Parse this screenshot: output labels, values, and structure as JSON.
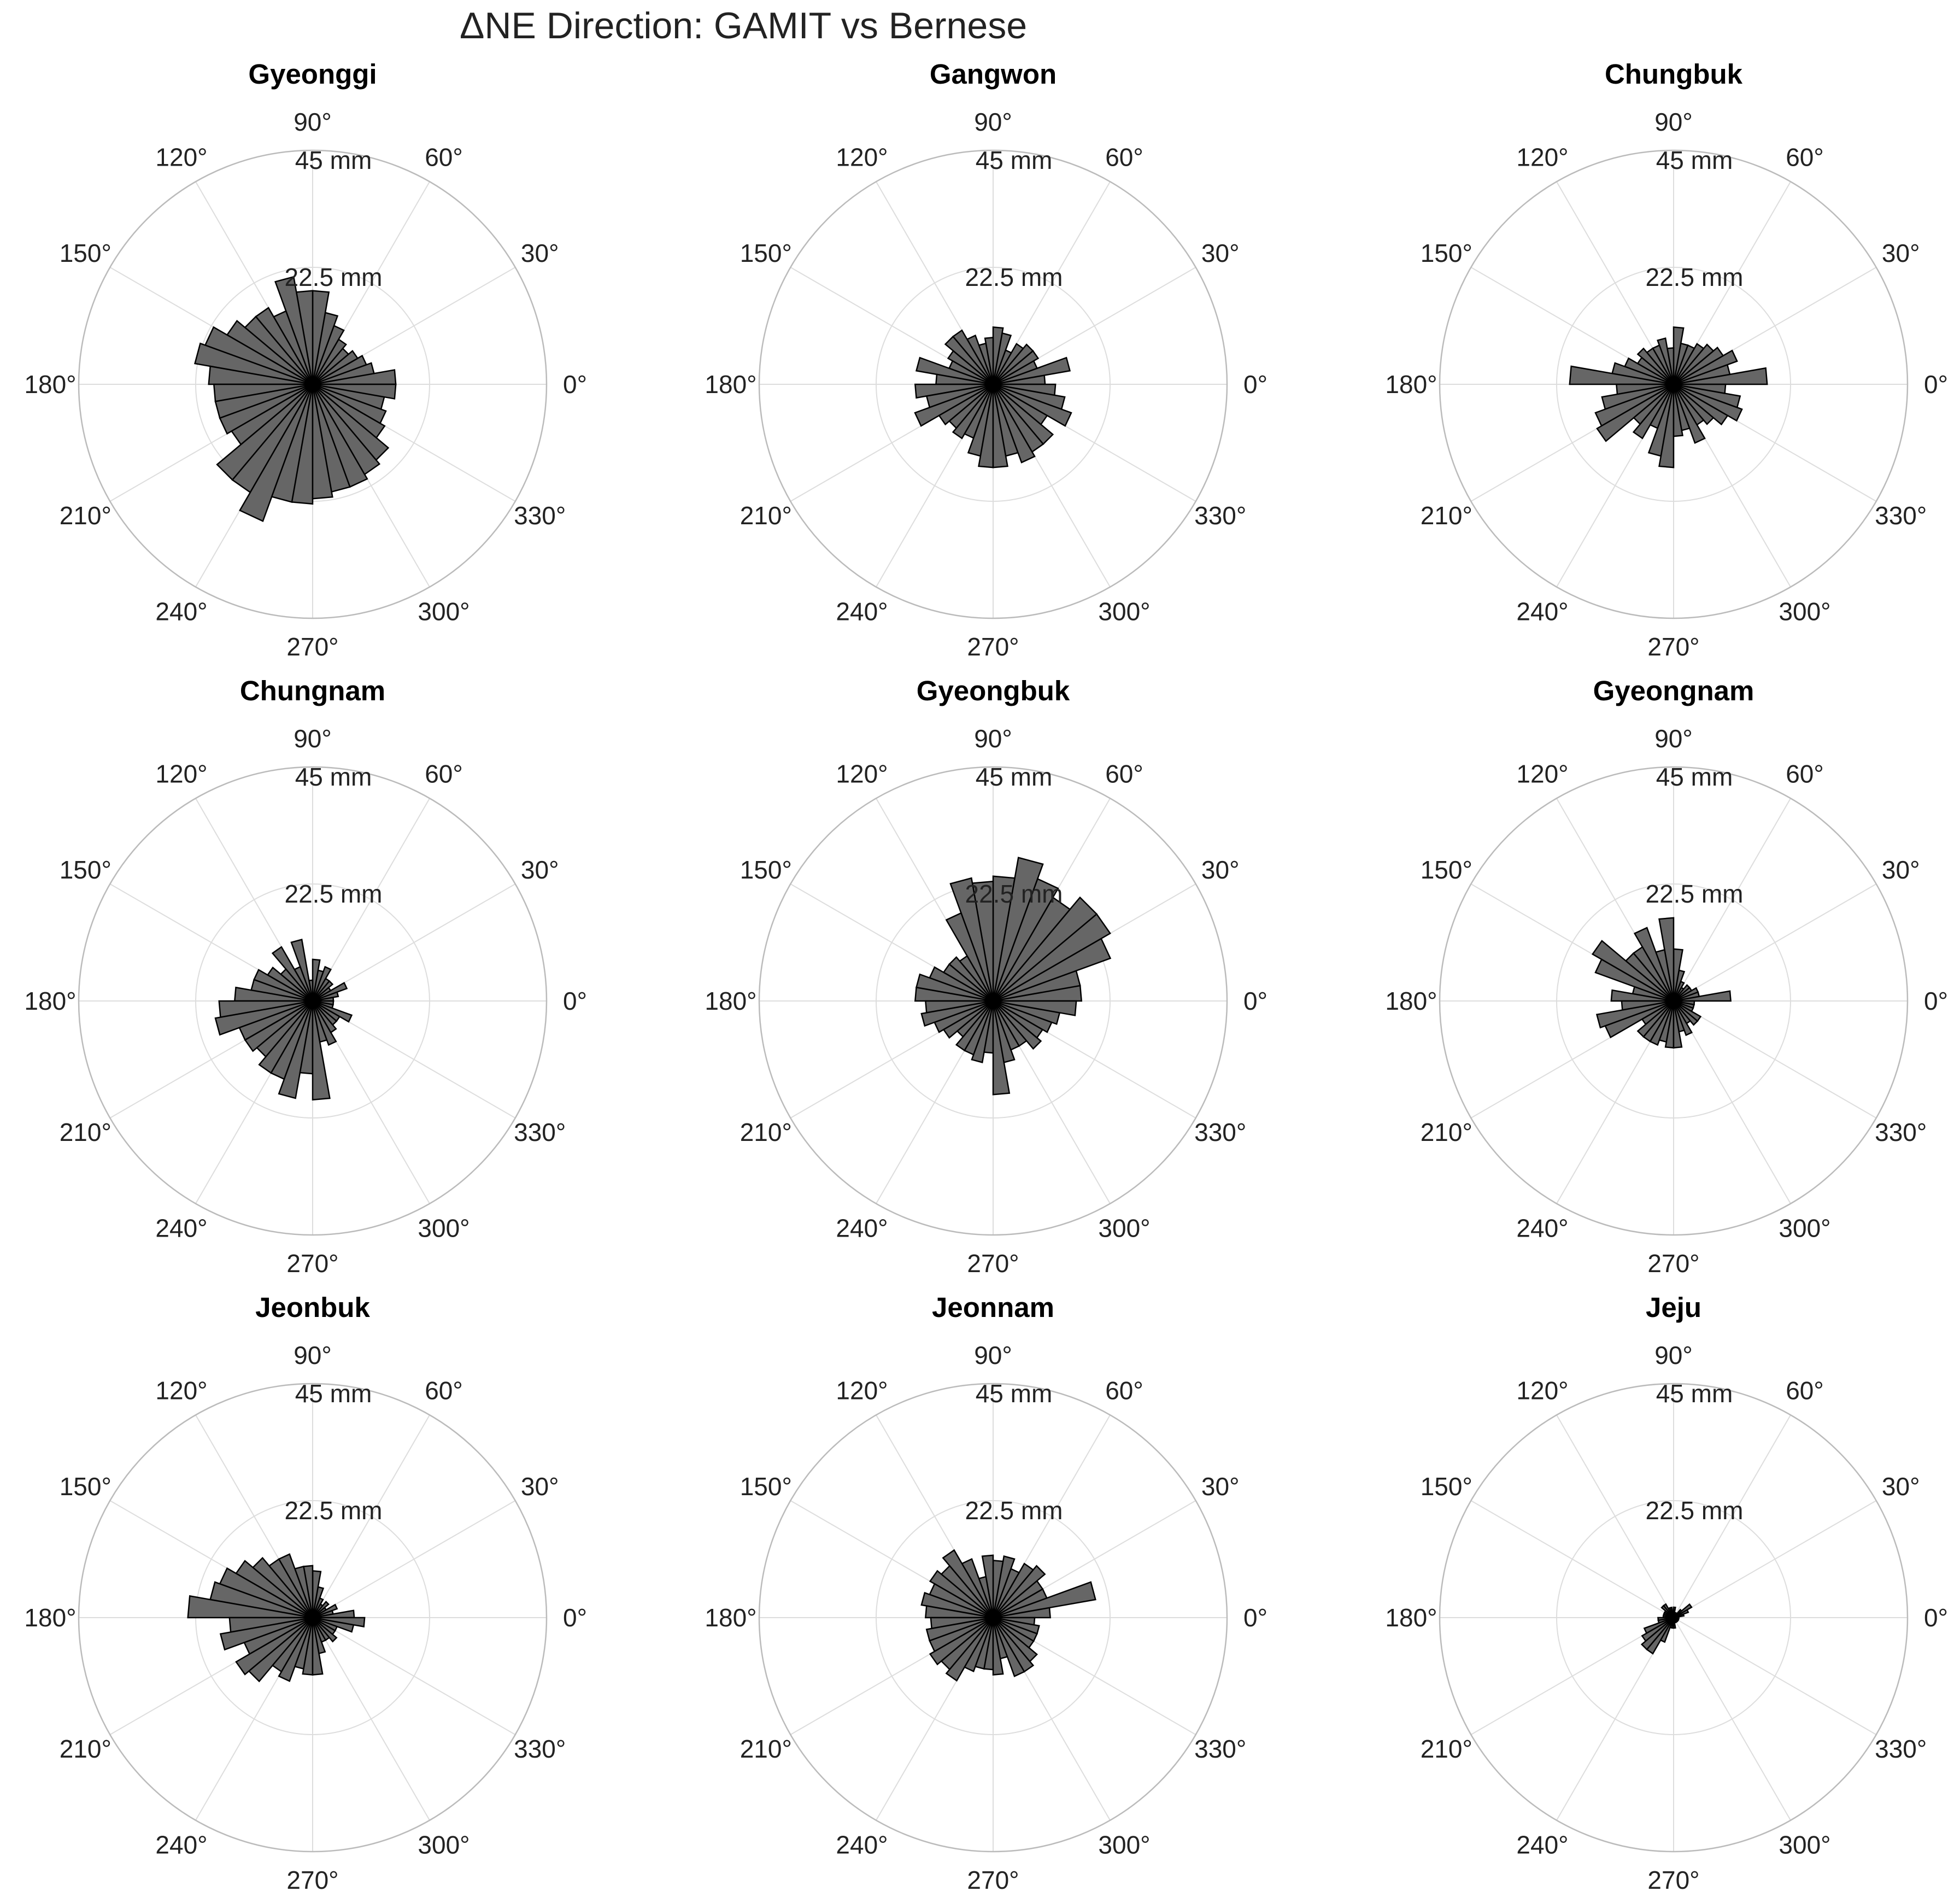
{
  "figure": {
    "title": "ΔNE Direction: GAMIT vs Bernese",
    "theta_tick_labels": [
      "0°",
      "30°",
      "60°",
      "90°",
      "120°",
      "150°",
      "180°",
      "210°",
      "240°",
      "270°",
      "300°",
      "330°"
    ],
    "radial_tick_labels": [
      "22.5 mm",
      "45 mm"
    ],
    "colors": {
      "bar_fill": "#666666",
      "bar_edge": "#000000",
      "grid": "#dddddd",
      "outer_ring": "#bbbbbb"
    }
  },
  "chart_data": [
    {
      "type": "polar-bar",
      "title": "Gyeonggi",
      "bin_width_deg": 10,
      "bin_centers_deg": [
        5,
        15,
        25,
        35,
        45,
        55,
        65,
        75,
        85,
        95,
        105,
        115,
        125,
        135,
        145,
        155,
        165,
        175,
        185,
        195,
        205,
        215,
        225,
        235,
        245,
        255,
        265,
        275,
        285,
        295,
        305,
        315,
        325,
        335,
        345,
        355
      ],
      "values_mm": [
        16,
        12,
        11,
        10,
        9,
        10,
        12,
        14,
        18,
        18,
        21,
        15,
        17,
        17,
        19,
        22,
        23,
        20,
        19,
        19,
        19,
        18,
        24,
        24,
        28,
        23,
        23,
        22,
        21,
        21,
        20,
        19,
        16,
        15,
        14,
        16
      ],
      "rmax": 45,
      "r_ticks": [
        22.5,
        45
      ]
    },
    {
      "type": "polar-bar",
      "title": "Gangwon",
      "bin_width_deg": 10,
      "bin_centers_deg": [
        5,
        15,
        25,
        35,
        45,
        55,
        65,
        75,
        85,
        95,
        105,
        115,
        125,
        135,
        145,
        155,
        165,
        175,
        185,
        195,
        205,
        215,
        225,
        235,
        245,
        255,
        265,
        275,
        285,
        295,
        305,
        315,
        325,
        335,
        345,
        355
      ],
      "values_mm": [
        10,
        15,
        9,
        10,
        10,
        9,
        7,
        10,
        11,
        9,
        8,
        10,
        12,
        12,
        10,
        9,
        15,
        11,
        15,
        13,
        16,
        12,
        11,
        12,
        11,
        14,
        16,
        16,
        14,
        16,
        15,
        15,
        12,
        16,
        14,
        12
      ],
      "rmax": 45,
      "r_ticks": [
        22.5,
        45
      ]
    },
    {
      "type": "polar-bar",
      "title": "Chungbuk",
      "bin_width_deg": 10,
      "bin_centers_deg": [
        5,
        15,
        25,
        35,
        45,
        55,
        65,
        75,
        85,
        95,
        105,
        115,
        125,
        135,
        145,
        155,
        165,
        175,
        185,
        195,
        205,
        215,
        225,
        235,
        245,
        255,
        265,
        275,
        285,
        295,
        305,
        315,
        325,
        335,
        345,
        355
      ],
      "values_mm": [
        18,
        11,
        13,
        11,
        10,
        9,
        8,
        8,
        11,
        7,
        9,
        8,
        8,
        9,
        8,
        10,
        12,
        20,
        11,
        14,
        16,
        17,
        10,
        12,
        9,
        14,
        16,
        10,
        9,
        12,
        9,
        10,
        12,
        14,
        13,
        10
      ],
      "rmax": 45,
      "r_ticks": [
        22.5,
        45
      ]
    },
    {
      "type": "polar-bar",
      "title": "Chungnam",
      "bin_width_deg": 10,
      "bin_centers_deg": [
        5,
        15,
        25,
        35,
        45,
        55,
        65,
        75,
        85,
        95,
        105,
        115,
        125,
        135,
        145,
        155,
        165,
        175,
        185,
        195,
        205,
        215,
        225,
        235,
        245,
        255,
        265,
        275,
        285,
        295,
        305,
        315,
        325,
        335,
        345,
        355
      ],
      "values_mm": [
        4,
        5,
        7,
        4,
        5,
        5,
        7,
        6,
        8,
        4,
        12,
        7,
        12,
        8,
        10,
        12,
        12,
        15,
        18,
        19,
        15,
        15,
        14,
        16,
        16,
        19,
        14,
        19,
        8,
        9,
        7,
        6,
        6,
        8,
        4,
        4
      ],
      "rmax": 45,
      "r_ticks": [
        22.5,
        45
      ]
    },
    {
      "type": "polar-bar",
      "title": "Gyeongbuk",
      "bin_width_deg": 10,
      "bin_centers_deg": [
        5,
        15,
        25,
        35,
        45,
        55,
        65,
        75,
        85,
        95,
        105,
        115,
        125,
        135,
        145,
        155,
        165,
        175,
        185,
        195,
        205,
        215,
        225,
        235,
        245,
        255,
        265,
        275,
        285,
        295,
        305,
        315,
        325,
        335,
        345,
        355
      ],
      "values_mm": [
        17,
        17,
        24,
        26,
        26,
        23,
        25,
        28,
        24,
        23,
        24,
        18,
        10,
        11,
        11,
        13,
        15,
        15,
        13,
        14,
        12,
        11,
        9,
        11,
        11,
        12,
        10,
        18,
        12,
        10,
        10,
        12,
        11,
        12,
        13,
        16
      ],
      "rmax": 45,
      "r_ticks": [
        22.5,
        45
      ]
    },
    {
      "type": "polar-bar",
      "title": "Gyeongnam",
      "bin_width_deg": 10,
      "bin_centers_deg": [
        5,
        15,
        25,
        35,
        45,
        55,
        65,
        75,
        85,
        95,
        105,
        115,
        125,
        135,
        145,
        155,
        165,
        175,
        185,
        195,
        205,
        215,
        225,
        235,
        245,
        255,
        265,
        275,
        285,
        295,
        305,
        315,
        325,
        335,
        345,
        355
      ],
      "values_mm": [
        11,
        5,
        5,
        4,
        4,
        3,
        4,
        6,
        10,
        16,
        10,
        15,
        12,
        12,
        18,
        16,
        8,
        12,
        10,
        15,
        14,
        7,
        9,
        9,
        9,
        8,
        9,
        9,
        6,
        7,
        5,
        6,
        6,
        4,
        4,
        4
      ],
      "rmax": 45,
      "r_ticks": [
        22.5,
        45
      ]
    },
    {
      "type": "polar-bar",
      "title": "Jeonbuk",
      "bin_width_deg": 10,
      "bin_centers_deg": [
        5,
        15,
        25,
        35,
        45,
        55,
        65,
        75,
        85,
        95,
        105,
        115,
        125,
        135,
        145,
        155,
        165,
        175,
        185,
        195,
        205,
        215,
        225,
        235,
        245,
        255,
        265,
        275,
        285,
        295,
        305,
        315,
        325,
        335,
        345,
        355
      ],
      "values_mm": [
        8,
        4,
        5,
        3,
        4,
        3,
        4,
        6,
        9,
        10,
        10,
        13,
        13,
        15,
        17,
        19,
        20,
        24,
        16,
        18,
        14,
        17,
        16,
        12,
        13,
        10,
        11,
        11,
        7,
        5,
        5,
        6,
        5,
        5,
        8,
        10
      ],
      "rmax": 45,
      "r_ticks": [
        22.5,
        45
      ]
    },
    {
      "type": "polar-bar",
      "title": "Jeonnam",
      "bin_width_deg": 10,
      "bin_centers_deg": [
        5,
        15,
        25,
        35,
        45,
        55,
        65,
        75,
        85,
        95,
        105,
        115,
        125,
        135,
        145,
        155,
        165,
        175,
        185,
        195,
        205,
        215,
        225,
        235,
        245,
        255,
        265,
        275,
        285,
        295,
        305,
        315,
        325,
        335,
        345,
        355
      ],
      "values_mm": [
        11,
        20,
        11,
        11,
        13,
        12,
        10,
        12,
        11,
        12,
        8,
        12,
        15,
        13,
        14,
        13,
        14,
        13,
        12,
        13,
        13,
        14,
        13,
        14,
        11,
        10,
        10,
        11,
        8,
        12,
        12,
        11,
        9,
        9,
        9,
        8
      ],
      "rmax": 45,
      "r_ticks": [
        22.5,
        45
      ]
    },
    {
      "type": "polar-bar",
      "title": "Jeju",
      "bin_width_deg": 10,
      "bin_centers_deg": [
        5,
        15,
        25,
        35,
        45,
        55,
        65,
        75,
        85,
        95,
        105,
        115,
        125,
        135,
        145,
        155,
        165,
        175,
        185,
        195,
        205,
        215,
        225,
        235,
        245,
        255,
        265,
        275,
        285,
        295,
        305,
        315,
        325,
        335,
        345,
        355
      ],
      "values_mm": [
        1,
        2,
        3,
        4,
        2,
        1,
        1,
        1,
        2,
        1,
        2,
        2,
        3,
        3,
        2,
        2,
        2,
        2,
        3,
        3,
        6,
        7,
        8,
        8,
        5,
        2,
        2,
        2,
        1,
        1,
        1,
        1,
        1,
        1,
        1,
        1
      ],
      "rmax": 45,
      "r_ticks": [
        22.5,
        45
      ]
    }
  ]
}
